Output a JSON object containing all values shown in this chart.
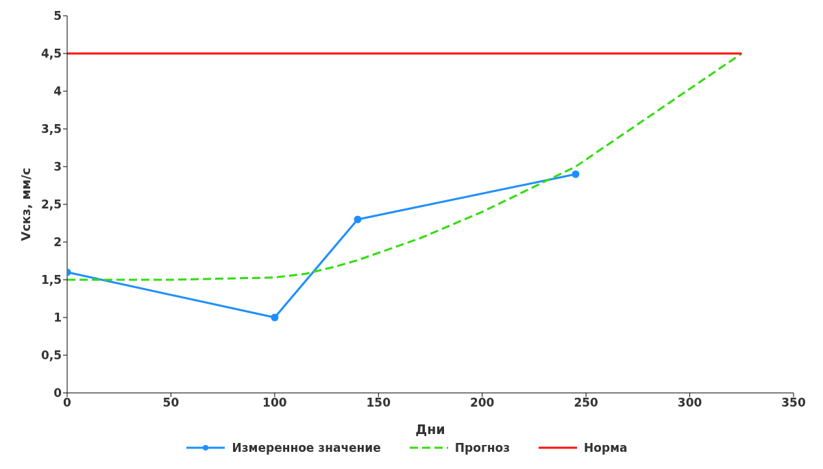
{
  "chart_data": {
    "type": "line",
    "xlabel": "Дни",
    "ylabel": "Vскз, мм/с",
    "xlim": [
      0,
      350
    ],
    "xticks": [
      0,
      50,
      100,
      150,
      200,
      250,
      300,
      350
    ],
    "ylim": [
      0,
      5
    ],
    "yticks": [
      0,
      {
        "value": 0.5,
        "label": "0,5"
      },
      1,
      {
        "value": 1.5,
        "label": "1,5"
      },
      2,
      {
        "value": 2.5,
        "label": "2,5"
      },
      3,
      {
        "value": 3.5,
        "label": "3,5"
      },
      4,
      {
        "value": 4.5,
        "label": "4,5"
      },
      5
    ],
    "grid": false,
    "legend": "bottom",
    "series": [
      {
        "name": "Измеренное значение",
        "color": "#1e8fff",
        "x": [
          0,
          100,
          140,
          245
        ],
        "values": [
          1.6,
          1.0,
          2.3,
          2.9
        ],
        "marker": "circle",
        "line_style": "solid"
      },
      {
        "name": "Прогноз",
        "color": "#33dd11",
        "x": [
          0,
          50,
          100,
          115,
          130,
          140,
          170,
          200,
          230,
          245,
          285,
          325
        ],
        "values": [
          1.5,
          1.5,
          1.53,
          1.58,
          1.68,
          1.76,
          2.05,
          2.4,
          2.8,
          3.0,
          3.75,
          4.5
        ],
        "marker": "none",
        "line_style": "dashed"
      },
      {
        "name": "Норма",
        "color": "#ff1111",
        "x": [
          0,
          325
        ],
        "values": [
          4.5,
          4.5
        ],
        "marker": "none",
        "line_style": "solid"
      }
    ]
  }
}
